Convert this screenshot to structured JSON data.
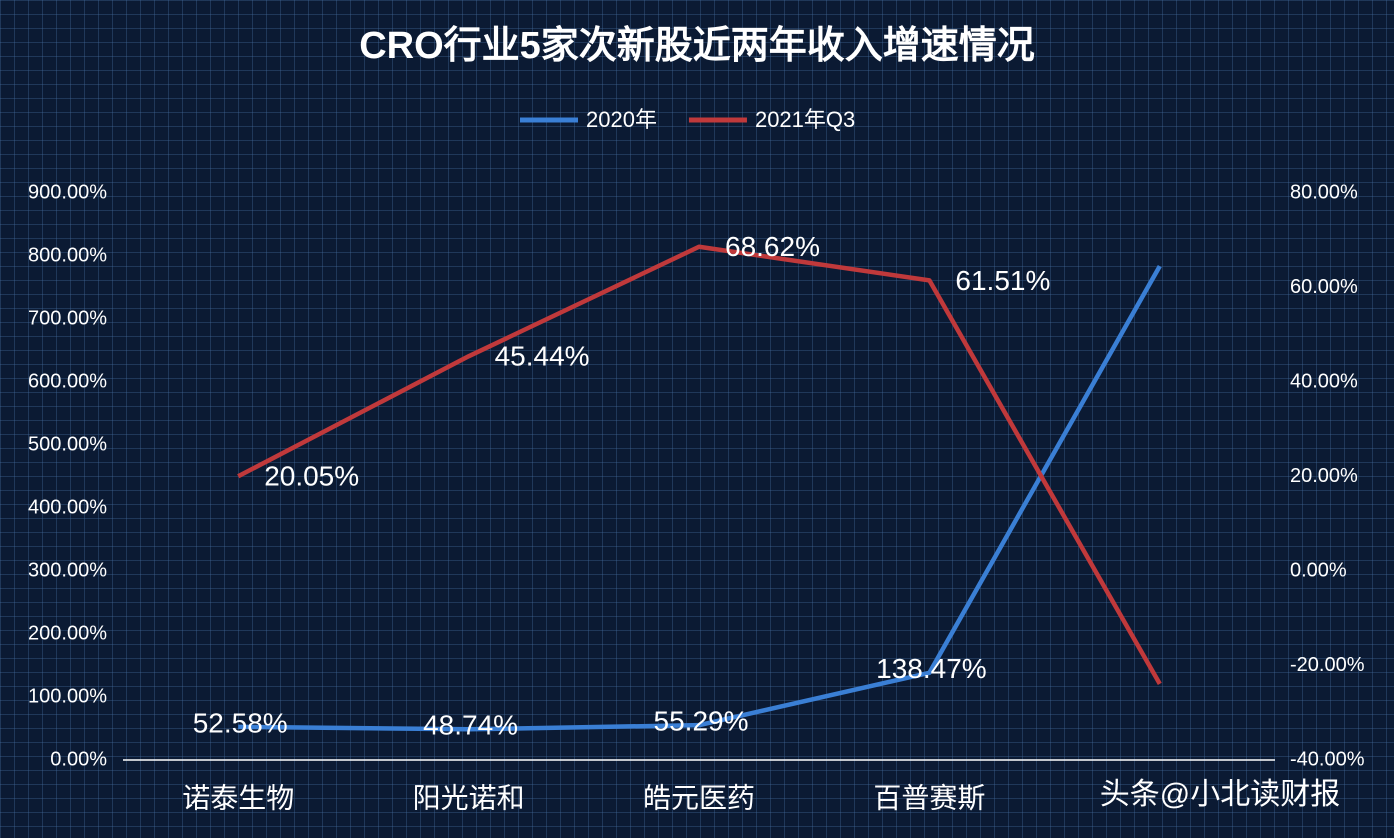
{
  "chart_data": {
    "type": "line",
    "title": "CRO行业5家次新股近两年收入增速情况",
    "categories": [
      "诺泰生物",
      "阳光诺和",
      "皓元医药",
      "百普赛斯",
      null
    ],
    "series": [
      {
        "name": "2020年",
        "color": "#3a7fd5",
        "axis": "y",
        "values": [
          52.58,
          48.74,
          55.29,
          138.47,
          784
        ],
        "value_labels": [
          "52.58%",
          "48.74%",
          "55.29%",
          "138.47%",
          null
        ]
      },
      {
        "name": "2021年Q3",
        "color": "#c0393b",
        "axis": "y2",
        "values": [
          20.05,
          45.44,
          68.62,
          61.51,
          -23.9
        ],
        "value_labels": [
          "20.05%",
          "45.44%",
          "68.62%",
          "61.51%",
          null
        ]
      }
    ],
    "ylim": [
      0,
      900
    ],
    "yticks": [
      {
        "value": 0,
        "label": "0.00%"
      },
      {
        "value": 100,
        "label": "100.00%"
      },
      {
        "value": 200,
        "label": "200.00%"
      },
      {
        "value": 300,
        "label": "300.00%"
      },
      {
        "value": 400,
        "label": "400.00%"
      },
      {
        "value": 500,
        "label": "500.00%"
      },
      {
        "value": 600,
        "label": "600.00%"
      },
      {
        "value": 700,
        "label": "700.00%"
      },
      {
        "value": 800,
        "label": "800.00%"
      },
      {
        "value": 900,
        "label": "900.00%"
      }
    ],
    "y2lim": [
      -40,
      80
    ],
    "y2ticks": [
      {
        "value": -40,
        "label": "-40.00%"
      },
      {
        "value": -20,
        "label": "-20.00%"
      },
      {
        "value": 0,
        "label": "0.00%"
      },
      {
        "value": 20,
        "label": "20.00%"
      },
      {
        "value": 40,
        "label": "40.00%"
      },
      {
        "value": 60,
        "label": "60.00%"
      },
      {
        "value": 80,
        "label": "80.00%"
      }
    ],
    "grid": false,
    "legend": "top",
    "watermark": "头条@小北读财报"
  }
}
